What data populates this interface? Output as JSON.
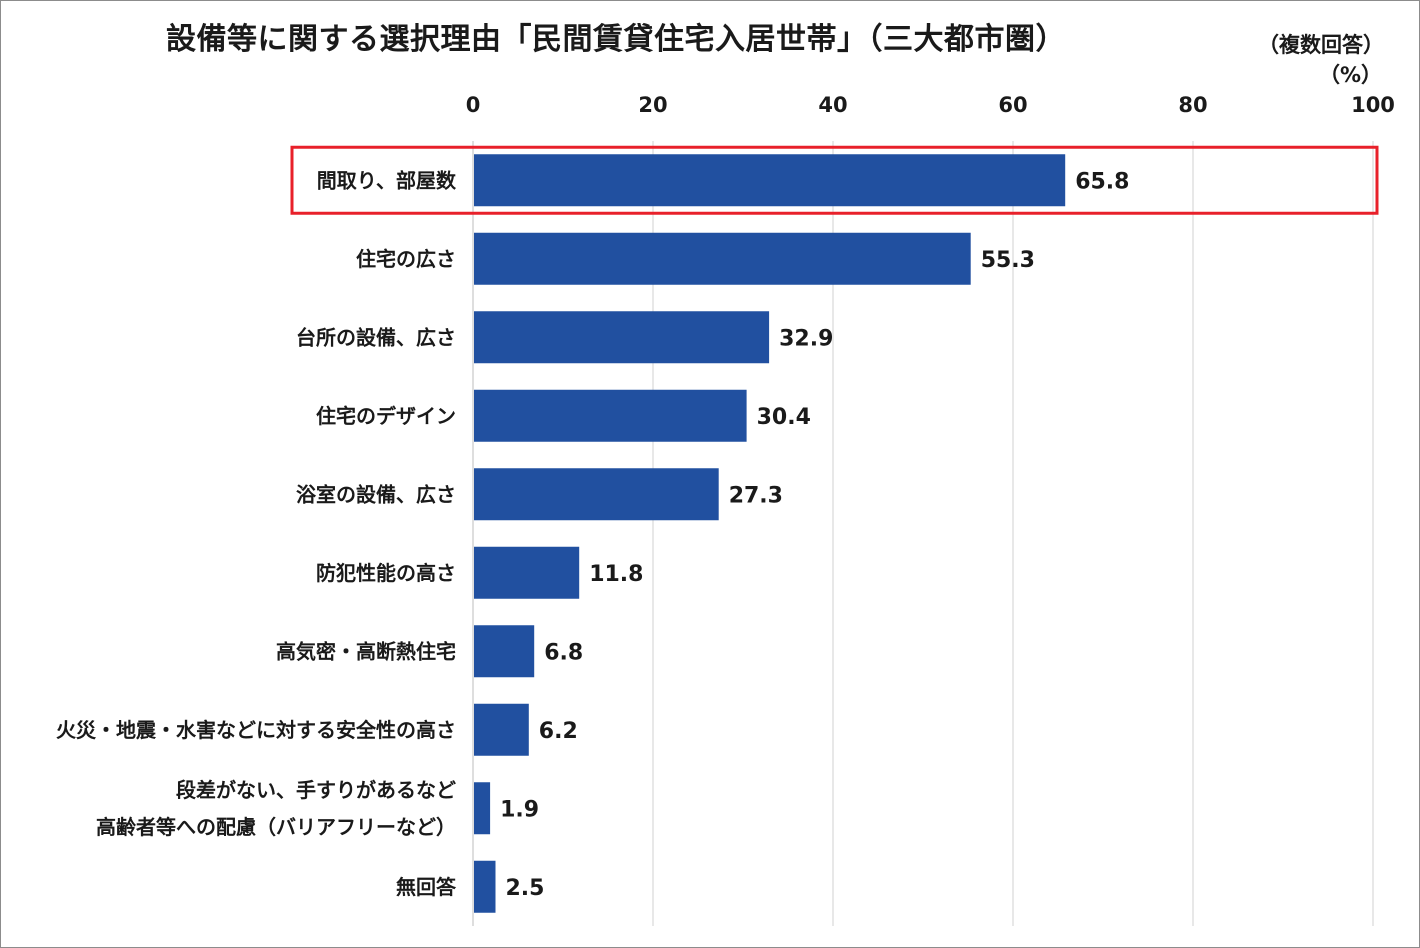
{
  "title": "設備等に関する選択理由「民間賃貸住宅入居世帯」（三大都市圏）",
  "note": "（複数回答）",
  "unit": "（%）",
  "colors": {
    "bar": "#2150a0",
    "highlight": "#e8202a",
    "grid": "#d0d0d0"
  },
  "chart_data": {
    "type": "bar",
    "orientation": "horizontal",
    "categories": [
      [
        "間取り、部屋数"
      ],
      [
        "住宅の広さ"
      ],
      [
        "台所の設備、広さ"
      ],
      [
        "住宅のデザイン"
      ],
      [
        "浴室の設備、広さ"
      ],
      [
        "防犯性能の高さ"
      ],
      [
        "高気密・高断熱住宅"
      ],
      [
        "火災・地震・水害などに対する安全性の高さ"
      ],
      [
        "段差がない、手すりがあるなど",
        "高齢者等への配慮（バリアフリーなど）"
      ],
      [
        "無回答"
      ]
    ],
    "values": [
      65.8,
      55.3,
      32.9,
      30.4,
      27.3,
      11.8,
      6.8,
      6.2,
      1.9,
      2.5
    ],
    "value_labels": [
      "65.8",
      "55.3",
      "32.9",
      "30.4",
      "27.3",
      "11.8",
      "6.8",
      "6.2",
      "1.9",
      "2.5"
    ],
    "xlim": [
      0,
      100
    ],
    "xticks": [
      0,
      20,
      40,
      60,
      80,
      100
    ],
    "tick_labels": [
      "0",
      "20",
      "40",
      "60",
      "80",
      "100"
    ],
    "axis_position": "top",
    "grid": "vertical",
    "highlighted_category_index": 0
  }
}
